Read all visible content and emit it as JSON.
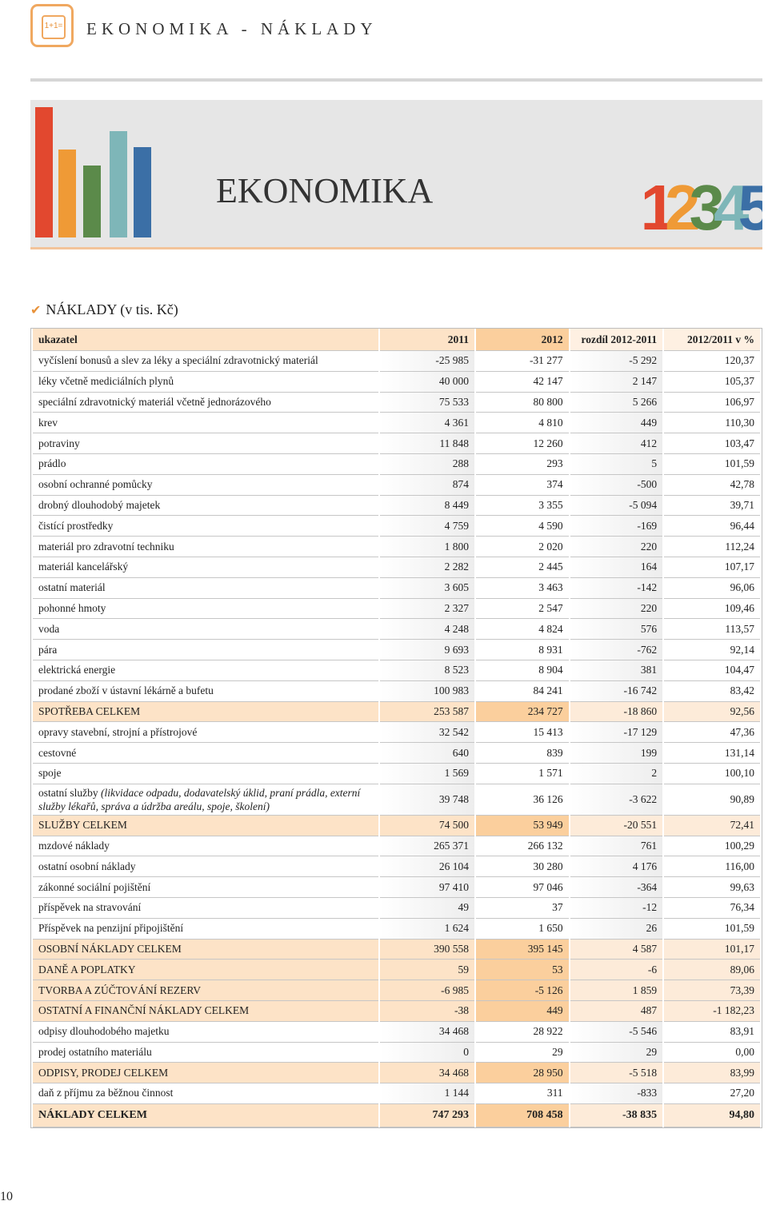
{
  "header": {
    "icon_text": "1+1=",
    "title": "EKONOMIKA - NÁKLADY"
  },
  "banner": {
    "title": "EKONOMIKA",
    "digits": [
      "1",
      "2",
      "3",
      "4",
      "5"
    ]
  },
  "section": {
    "title": "NÁKLADY (v tis. Kč)"
  },
  "table": {
    "columns": [
      "ukazatel",
      "2011",
      "2012",
      "rozdíl 2012-2011",
      "2012/2011 v %"
    ],
    "rows": [
      [
        "vyčíslení bonusů a slev za léky a speciální zdravotnický materiál",
        "-25 985",
        "-31 277",
        "-5 292",
        "120,37"
      ],
      [
        "léky včetně mediciálních plynů",
        "40 000",
        "42 147",
        "2 147",
        "105,37"
      ],
      [
        "speciální zdravotnický materiál včetně jednorázového",
        "75 533",
        "80 800",
        "5 266",
        "106,97"
      ],
      [
        "krev",
        "4 361",
        "4 810",
        "449",
        "110,30"
      ],
      [
        "potraviny",
        "11 848",
        "12 260",
        "412",
        "103,47"
      ],
      [
        "prádlo",
        "288",
        "293",
        "5",
        "101,59"
      ],
      [
        "osobní ochranné pomůcky",
        "874",
        "374",
        "-500",
        "42,78"
      ],
      [
        "drobný dlouhodobý majetek",
        "8 449",
        "3 355",
        "-5 094",
        "39,71"
      ],
      [
        "čistící prostředky",
        "4 759",
        "4 590",
        "-169",
        "96,44"
      ],
      [
        "materiál pro zdravotní techniku",
        "1 800",
        "2 020",
        "220",
        "112,24"
      ],
      [
        "materiál kancelářský",
        "2 282",
        "2 445",
        "164",
        "107,17"
      ],
      [
        "ostatní materiál",
        "3 605",
        "3 463",
        "-142",
        "96,06"
      ],
      [
        "pohonné hmoty",
        "2 327",
        "2 547",
        "220",
        "109,46"
      ],
      [
        "voda",
        "4 248",
        "4 824",
        "576",
        "113,57"
      ],
      [
        "pára",
        "9 693",
        "8 931",
        "-762",
        "92,14"
      ],
      [
        "elektrická energie",
        "8 523",
        "8 904",
        "381",
        "104,47"
      ],
      [
        "prodané zboží v ústavní lékárně a bufetu",
        "100 983",
        "84 241",
        "-16 742",
        "83,42"
      ],
      [
        "SPOTŘEBA CELKEM",
        "253 587",
        "234 727",
        "-18 860",
        "92,56"
      ],
      [
        "opravy stavební, strojní a přístrojové",
        "32 542",
        "15 413",
        "-17 129",
        "47,36"
      ],
      [
        "cestovné",
        "640",
        "839",
        "199",
        "131,14"
      ],
      [
        "spoje",
        "1 569",
        "1 571",
        "2",
        "100,10"
      ],
      [
        [
          "ostatní služby",
          "(likvidace odpadu, dodavatelský úklid, praní prádla, externí služby lékařů, správa a údržba areálu, spoje, školení)"
        ],
        "39 748",
        "36 126",
        "-3 622",
        "90,89"
      ],
      [
        "SLUŽBY CELKEM",
        "74 500",
        "53 949",
        "-20 551",
        "72,41"
      ],
      [
        "mzdové náklady",
        "265 371",
        "266 132",
        "761",
        "100,29"
      ],
      [
        "ostatní osobní náklady",
        "26 104",
        "30 280",
        "4 176",
        "116,00"
      ],
      [
        "zákonné sociální pojištění",
        "97 410",
        "97 046",
        "-364",
        "99,63"
      ],
      [
        "příspěvek na stravování",
        "49",
        "37",
        "-12",
        "76,34"
      ],
      [
        "Příspěvek na penzijní připojištění",
        "1 624",
        "1 650",
        "26",
        "101,59"
      ],
      [
        "OSOBNÍ NÁKLADY CELKEM",
        "390 558",
        "395 145",
        "4 587",
        "101,17"
      ],
      [
        "DANĚ A POPLATKY",
        "59",
        "53",
        "-6",
        "89,06"
      ],
      [
        "TVORBA A ZÚČTOVÁNÍ REZERV",
        "-6 985",
        "-5 126",
        "1 859",
        "73,39"
      ],
      [
        "OSTATNÍ A FINANČNÍ NÁKLADY CELKEM",
        "-38",
        "449",
        "487",
        "-1 182,23"
      ],
      [
        "odpisy dlouhodobého majetku",
        "34 468",
        "28 922",
        "-5 546",
        "83,91"
      ],
      [
        "prodej ostatního materiálu",
        "0",
        "29",
        "29",
        "0,00"
      ],
      [
        "ODPISY, PRODEJ CELKEM",
        "34 468",
        "28 950",
        "-5 518",
        "83,99"
      ],
      [
        "daň z příjmu za běžnou činnost",
        "1 144",
        "311",
        "-833",
        "27,20"
      ],
      [
        "NÁKLADY CELKEM",
        "747 293",
        "708 458",
        "-38 835",
        "94,80"
      ]
    ]
  },
  "footer": {
    "page_number": "10"
  }
}
